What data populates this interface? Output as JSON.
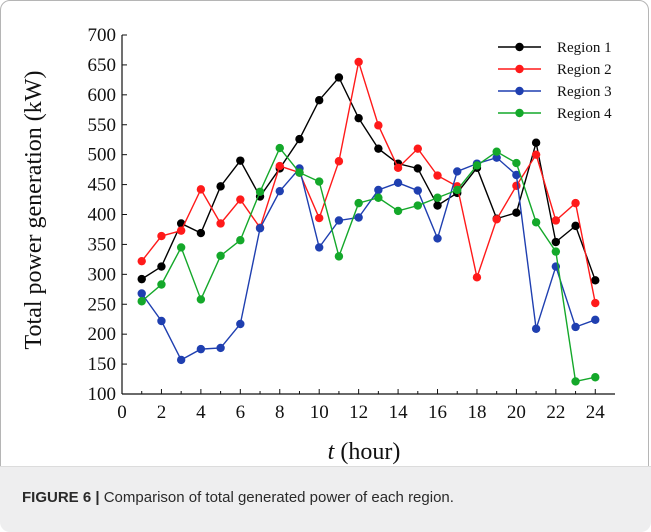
{
  "figure": {
    "caption_lead": "FIGURE 6 |",
    "caption_text": " Comparison of total generated power of each region."
  },
  "chart_data": {
    "type": "line",
    "title": "",
    "xlabel_italic": "t",
    "xlabel_rest": " (hour)",
    "ylabel": "Total power generation (kW)",
    "xlim": [
      0,
      25
    ],
    "ylim": [
      100,
      700
    ],
    "xticks": [
      0,
      2,
      4,
      6,
      8,
      10,
      12,
      14,
      16,
      18,
      20,
      22,
      24
    ],
    "yticks": [
      100,
      150,
      200,
      250,
      300,
      350,
      400,
      450,
      500,
      550,
      600,
      650,
      700
    ],
    "grid": false,
    "legend_position": "top-right",
    "x": [
      1,
      2,
      3,
      4,
      5,
      6,
      7,
      8,
      9,
      10,
      11,
      12,
      13,
      14,
      15,
      16,
      17,
      18,
      19,
      20,
      21,
      22,
      23,
      24
    ],
    "series": [
      {
        "name": "Region 1",
        "color": "#000000",
        "values": [
          292,
          313,
          385,
          369,
          447,
          490,
          430,
          477,
          526,
          591,
          629,
          561,
          510,
          485,
          477,
          415,
          436,
          478,
          393,
          403,
          520,
          354,
          381,
          290
        ]
      },
      {
        "name": "Region 2",
        "color": "#ff1a1a",
        "values": [
          322,
          364,
          373,
          442,
          385,
          425,
          378,
          481,
          470,
          394,
          489,
          655,
          549,
          478,
          510,
          465,
          447,
          295,
          392,
          448,
          500,
          390,
          419,
          252
        ]
      },
      {
        "name": "Region 3",
        "color": "#1f3fb0",
        "values": [
          268,
          222,
          157,
          175,
          177,
          217,
          377,
          439,
          477,
          345,
          390,
          395,
          441,
          453,
          440,
          360,
          472,
          485,
          495,
          466,
          209,
          313,
          212,
          224
        ]
      },
      {
        "name": "Region 4",
        "color": "#14a82a",
        "values": [
          255,
          283,
          345,
          258,
          331,
          357,
          438,
          511,
          470,
          455,
          330,
          419,
          428,
          406,
          415,
          428,
          441,
          482,
          505,
          486,
          387,
          338,
          121,
          128
        ]
      }
    ]
  }
}
